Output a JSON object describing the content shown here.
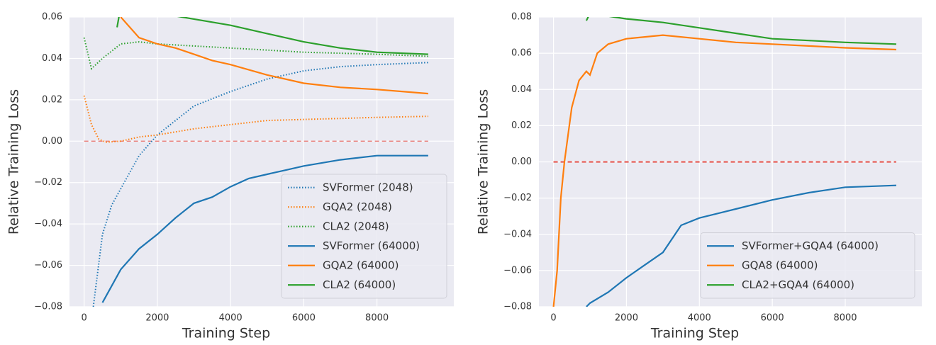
{
  "chart_data": [
    {
      "type": "line",
      "xlabel": "Training Step",
      "ylabel": "Relative Training Loss",
      "xlim": [
        -400,
        10100
      ],
      "ylim": [
        -0.08,
        0.06
      ],
      "xticks": [
        0,
        2000,
        4000,
        6000,
        8000
      ],
      "yticks": [
        {
          "value": -0.08,
          "label": "−0.08"
        },
        {
          "value": -0.06,
          "label": "−0.06"
        },
        {
          "value": -0.04,
          "label": "−0.04"
        },
        {
          "value": -0.02,
          "label": "−0.02"
        },
        {
          "value": 0,
          "label": "0.00"
        },
        0.02,
        0.04,
        0.06
      ],
      "grid": true,
      "legend": "lower right",
      "reference_line": {
        "y": 0,
        "color": "#e8706a"
      },
      "series": [
        {
          "name": "SVFormer (2048)",
          "color": "#1f77b4",
          "style": "dotted",
          "x": [
            250,
            500,
            750,
            1000,
            1500,
            2000,
            3000,
            4000,
            5000,
            6000,
            7000,
            8000,
            9400
          ],
          "values": [
            -0.08,
            -0.045,
            -0.031,
            -0.023,
            -0.007,
            0.003,
            0.017,
            0.024,
            0.03,
            0.034,
            0.036,
            0.037,
            0.038
          ]
        },
        {
          "name": "GQA2 (2048)",
          "color": "#ff7f0e",
          "style": "dotted",
          "x": [
            0,
            200,
            400,
            600,
            1000,
            1500,
            2000,
            3000,
            4000,
            5000,
            6000,
            7000,
            8000,
            9400
          ],
          "values": [
            0.022,
            0.008,
            0.001,
            -0.0005,
            0,
            0.002,
            0.003,
            0.006,
            0.008,
            0.01,
            0.0105,
            0.011,
            0.0115,
            0.012
          ]
        },
        {
          "name": "CLA2 (2048)",
          "color": "#2ca02c",
          "style": "dotted",
          "x": [
            0,
            200,
            500,
            1000,
            1500,
            2000,
            3000,
            4000,
            5000,
            6000,
            7000,
            8000,
            9400
          ],
          "values": [
            0.05,
            0.035,
            0.04,
            0.047,
            0.048,
            0.047,
            0.046,
            0.045,
            0.044,
            0.043,
            0.0425,
            0.042,
            0.041
          ]
        },
        {
          "name": "SVFormer (64000)",
          "color": "#1f77b4",
          "style": "solid",
          "x": [
            500,
            1000,
            1500,
            2000,
            2500,
            3000,
            3500,
            4000,
            4500,
            5000,
            5500,
            6000,
            7000,
            8000,
            9400
          ],
          "values": [
            -0.078,
            -0.062,
            -0.052,
            -0.045,
            -0.037,
            -0.03,
            -0.027,
            -0.022,
            -0.018,
            -0.016,
            -0.014,
            -0.012,
            -0.009,
            -0.007,
            -0.007
          ]
        },
        {
          "name": "GQA2 (64000)",
          "color": "#ff7f0e",
          "style": "solid",
          "x": [
            1000,
            1500,
            2000,
            2500,
            3000,
            3500,
            4000,
            5000,
            6000,
            7000,
            8000,
            9400
          ],
          "values": [
            0.06,
            0.05,
            0.047,
            0.045,
            0.042,
            0.039,
            0.037,
            0.032,
            0.028,
            0.026,
            0.025,
            0.023
          ]
        },
        {
          "name": "CLA2 (64000)",
          "color": "#2ca02c",
          "style": "solid",
          "x": [
            900,
            1000,
            2000,
            3000,
            4000,
            5000,
            6000,
            7000,
            8000,
            9400
          ],
          "values": [
            0.055,
            0.065,
            0.062,
            0.059,
            0.056,
            0.052,
            0.048,
            0.045,
            0.043,
            0.042
          ]
        }
      ]
    },
    {
      "type": "line",
      "xlabel": "Training Step",
      "ylabel": "Relative Training Loss",
      "xlim": [
        -400,
        10100
      ],
      "ylim": [
        -0.08,
        0.08
      ],
      "xticks": [
        0,
        2000,
        4000,
        6000,
        8000
      ],
      "yticks": [
        {
          "value": -0.08,
          "label": "−0.08"
        },
        {
          "value": -0.06,
          "label": "−0.06"
        },
        {
          "value": -0.04,
          "label": "−0.04"
        },
        {
          "value": -0.02,
          "label": "−0.02"
        },
        {
          "value": 0,
          "label": "0.00"
        },
        0.02,
        0.04,
        0.06,
        0.08
      ],
      "grid": true,
      "legend": "lower right",
      "reference_line": {
        "y": 0,
        "color": "#e8706a"
      },
      "series": [
        {
          "name": "SVFormer+GQA4 (64000)",
          "color": "#1f77b4",
          "style": "solid",
          "x": [
            900,
            1000,
            1500,
            2000,
            2500,
            3000,
            3500,
            4000,
            5000,
            6000,
            7000,
            8000,
            9400
          ],
          "values": [
            -0.08,
            -0.078,
            -0.072,
            -0.064,
            -0.057,
            -0.05,
            -0.035,
            -0.031,
            -0.026,
            -0.021,
            -0.017,
            -0.014,
            -0.013
          ]
        },
        {
          "name": "GQA8 (64000)",
          "color": "#ff7f0e",
          "style": "solid",
          "x": [
            0,
            100,
            200,
            300,
            500,
            700,
            900,
            1000,
            1200,
            1500,
            2000,
            3000,
            4000,
            5000,
            6000,
            7000,
            8000,
            9400
          ],
          "values": [
            -0.08,
            -0.06,
            -0.02,
            0,
            0.03,
            0.045,
            0.05,
            0.048,
            0.06,
            0.065,
            0.068,
            0.07,
            0.068,
            0.066,
            0.065,
            0.064,
            0.063,
            0.062
          ]
        },
        {
          "name": "CLA2+GQA4 (64000)",
          "color": "#2ca02c",
          "style": "solid",
          "x": [
            900,
            1000,
            2000,
            3000,
            4000,
            5000,
            6000,
            7000,
            8000,
            9400
          ],
          "values": [
            0.078,
            0.082,
            0.079,
            0.077,
            0.074,
            0.071,
            0.068,
            0.067,
            0.066,
            0.065
          ]
        }
      ]
    }
  ]
}
